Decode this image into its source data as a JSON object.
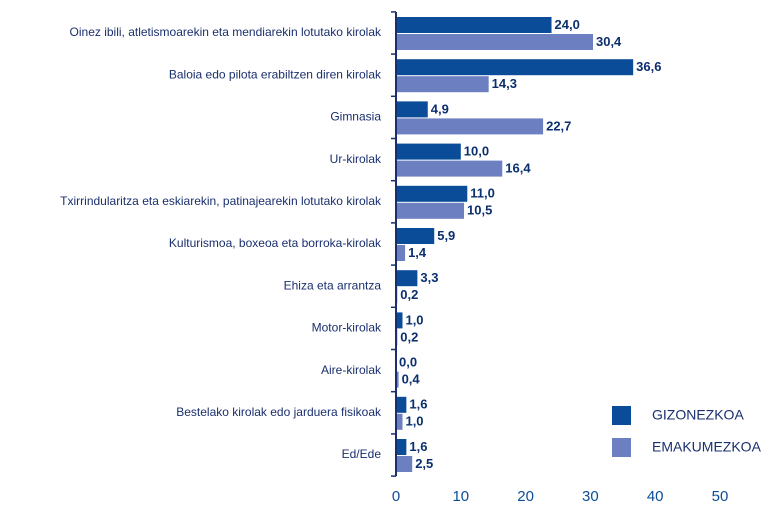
{
  "chart_data": {
    "type": "bar",
    "orientation": "horizontal",
    "categories": [
      "Oinez ibili, atletismoarekin eta mendiarekin lotutako kirolak",
      "Baloia edo pilota erabiltzen diren kirolak",
      "Gimnasia",
      "Ur-kirolak",
      "Txirrindularitza eta eskiarekin, patinajearekin lotutako kirolak",
      "Kulturismoa, boxeoa eta borroka-kirolak",
      "Ehiza eta arrantza",
      "Motor-kirolak",
      "Aire-kirolak",
      "Bestelako kirolak edo jarduera fisikoak",
      "Ed/Ede"
    ],
    "series": [
      {
        "name": "GIZONEZKOA",
        "color": "#0b4c98",
        "values": [
          24.0,
          36.6,
          4.9,
          10.0,
          11.0,
          5.9,
          3.3,
          1.0,
          0.0,
          1.6,
          1.6
        ],
        "value_labels": [
          "24,0",
          "36,6",
          "4,9",
          "10,0",
          "11,0",
          "5,9",
          "3,3",
          "1,0",
          "0,0",
          "1,6",
          "1,6"
        ]
      },
      {
        "name": "EMAKUMEZKOA",
        "color": "#6c7fc0",
        "values": [
          30.4,
          14.3,
          22.7,
          16.4,
          10.5,
          1.4,
          0.2,
          0.2,
          0.4,
          1.0,
          2.5
        ],
        "value_labels": [
          "30,4",
          "14,3",
          "22,7",
          "16,4",
          "10,5",
          "1,4",
          "0,2",
          "0,2",
          "0,4",
          "1,0",
          "2,5"
        ]
      }
    ],
    "xlim": [
      0,
      50
    ],
    "xticks": [
      0,
      10,
      20,
      30,
      40,
      50
    ],
    "legend": "lower right"
  }
}
